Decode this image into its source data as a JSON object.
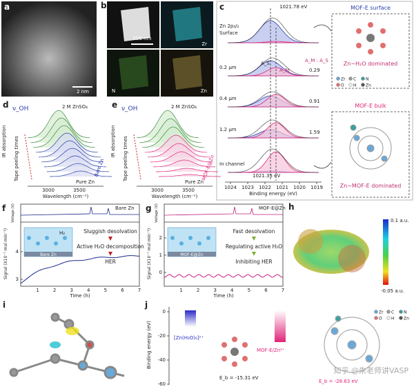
{
  "panels": {
    "a": {
      "label": "a",
      "scale": "2 nm"
    },
    "b": {
      "label": "b",
      "scale": "250 nm",
      "maps": [
        "Zr",
        "N",
        "Zn"
      ]
    },
    "c": {
      "label": "c",
      "peak_top": "1021.78 eV",
      "peak_bottom": "1021.35 eV",
      "species": "Zn 2p₃/₂",
      "rows": [
        "Surface",
        "0.2 μm",
        "0.4 μm",
        "1.2 μm",
        "In channel"
      ],
      "a_s": "A_S",
      "a_m": "A_M",
      "ratio_label": "A_M : A_S",
      "ratios": [
        "0.29",
        "0.91",
        "1.59"
      ],
      "xticks": [
        "1024",
        "1023",
        "1022",
        "1021",
        "1020",
        "1019"
      ],
      "xlabel": "Binding energy (eV)",
      "surface_title": "MOF-E surface",
      "surface_note": "Zn−H₂O dominated",
      "bulk_title": "MOF-E bulk",
      "bulk_note": "Zn−MOF-E dominated",
      "legend": [
        "Zr",
        "C",
        "N",
        "O",
        "H",
        "Zn"
      ]
    },
    "d": {
      "label": "d",
      "nu": "ν_OH",
      "electrolyte": "2 M ZnSO₄",
      "ylabel": "IR absorption",
      "peel": "Tape peeling times",
      "sample": "Bare Zn",
      "ref": "Pure Zn",
      "xticks": [
        "3000",
        "3500"
      ],
      "xlabel": "Wavelength (cm⁻¹)"
    },
    "e": {
      "label": "e",
      "nu": "ν_OH",
      "electrolyte": "2 M ZnSO₄",
      "ylabel": "IR absorption",
      "peel": "Tape peeling times",
      "sample": "MOF-E@Zn",
      "ref": "Pure Zn",
      "xticks": [
        "3000",
        "3500"
      ],
      "xlabel": "Wavelength (cm⁻¹)"
    },
    "f": {
      "label": "f",
      "y1label": "Voltage (V)",
      "legend": "Bare Zn",
      "ylabel": "Signal (X10⁻⁷ mol min⁻¹)",
      "yticks": [
        "3",
        "4"
      ],
      "xticks": [
        "1",
        "2",
        "3",
        "4",
        "5",
        "6",
        "7"
      ],
      "xlabel": "Time (h)",
      "inset": "Bare Zn",
      "gas": "H₂",
      "steps": [
        "Sluggish desolvation",
        "Active H₂O decomposition",
        "HER"
      ]
    },
    "g": {
      "label": "g",
      "y1label": "Voltage (V)",
      "legend": "MOF-E@Zn",
      "ylabel": "Signal (X10⁻⁷ mol min⁻¹)",
      "yticks": [
        "0",
        "1",
        "2"
      ],
      "xticks": [
        "1",
        "2",
        "3",
        "4",
        "5",
        "6",
        "7"
      ],
      "xlabel": "Time (h)",
      "inset": "MOF-E@Zn",
      "steps": [
        "Fast desolvation",
        "Regulating active H₂O",
        "Inhibiting HER"
      ]
    },
    "h": {
      "label": "h",
      "max": "0.1 a.u.",
      "min": "-0.05 a.u."
    },
    "i": {
      "label": "i"
    },
    "j": {
      "label": "j",
      "ylabel": "Binding energy (eV)",
      "yticks": [
        "0",
        "-20",
        "-40",
        "-60"
      ],
      "complex1": "[Zn(H₂O)₆]²⁺",
      "complex2": "MOF-E/Zn²⁺",
      "eb1": "E_b = -15.31 eV",
      "eb2": "E_b = -28.63 eV",
      "legend": [
        "Zr",
        "C",
        "N",
        "O",
        "H",
        "Zn"
      ]
    }
  },
  "watermark": "知乎 @朱老师讲VASP"
}
